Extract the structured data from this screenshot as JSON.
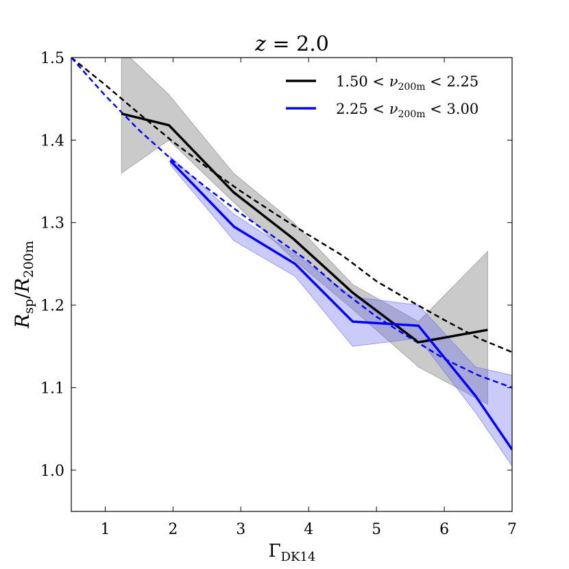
{
  "chart_data": {
    "type": "line",
    "title": "z = 2.0",
    "title_var": "z",
    "title_rest": " = 2.0",
    "xlabel_main": "Γ",
    "xlabel_sub": "DK14",
    "ylabel_num": "R",
    "ylabel_num_sub": "sp",
    "ylabel_den": "R",
    "ylabel_den_sub": "200m",
    "xlim": [
      0.5,
      7.0
    ],
    "ylim": [
      0.95,
      1.5
    ],
    "xticks": [
      1,
      2,
      3,
      4,
      5,
      6,
      7
    ],
    "xtick_labels": [
      "1",
      "2",
      "3",
      "4",
      "5",
      "6",
      "7"
    ],
    "yticks": [
      1.0,
      1.1,
      1.2,
      1.3,
      1.4,
      1.5
    ],
    "ytick_labels": [
      "1.0",
      "1.1",
      "1.2",
      "1.3",
      "1.4",
      "1.5"
    ],
    "legend_position": "top-right",
    "series": [
      {
        "name": "1.50 < ν200m < 2.25",
        "legend_lo": "1.50 < ",
        "legend_var": "ν",
        "legend_sub": "200m",
        "legend_hi": " < 2.25",
        "color": "#000000",
        "band_color": "#808080",
        "x": [
          1.24,
          1.94,
          2.89,
          3.78,
          4.65,
          5.62,
          6.64
        ],
        "y": [
          1.432,
          1.418,
          1.337,
          1.28,
          1.215,
          1.155,
          1.17
        ],
        "y_low": [
          1.36,
          1.4,
          1.325,
          1.255,
          1.195,
          1.125,
          1.08
        ],
        "y_high": [
          1.51,
          1.455,
          1.36,
          1.3,
          1.225,
          1.18,
          1.265
        ],
        "model_x": [
          0.5,
          1.0,
          1.5,
          2.0,
          2.5,
          3.0,
          3.5,
          4.0,
          4.5,
          5.0,
          5.5,
          6.0,
          6.5,
          7.0
        ],
        "model_y": [
          1.5,
          1.467,
          1.432,
          1.398,
          1.367,
          1.338,
          1.311,
          1.285,
          1.26,
          1.229,
          1.205,
          1.182,
          1.16,
          1.143
        ]
      },
      {
        "name": "2.25 < ν200m < 3.00",
        "legend_lo": "2.25 < ",
        "legend_var": "ν",
        "legend_sub": "200m",
        "legend_hi": " < 3.00",
        "color": "#0000ff",
        "band_color": "#6b6bf2",
        "x": [
          1.96,
          2.9,
          3.8,
          4.65,
          5.62,
          6.46,
          7.0
        ],
        "y": [
          1.375,
          1.295,
          1.25,
          1.18,
          1.175,
          1.09,
          1.025
        ],
        "y_low": [
          1.37,
          1.278,
          1.235,
          1.15,
          1.16,
          1.07,
          1.005
        ],
        "y_high": [
          1.38,
          1.31,
          1.262,
          1.21,
          1.2,
          1.125,
          1.115
        ],
        "model_x": [
          0.5,
          1.0,
          1.5,
          2.0,
          2.5,
          3.0,
          3.5,
          4.0,
          4.5,
          5.0,
          5.5,
          6.0,
          6.5,
          7.0
        ],
        "model_y": [
          1.5,
          1.454,
          1.412,
          1.375,
          1.342,
          1.311,
          1.282,
          1.253,
          1.217,
          1.186,
          1.16,
          1.135,
          1.115,
          1.1
        ]
      }
    ]
  }
}
